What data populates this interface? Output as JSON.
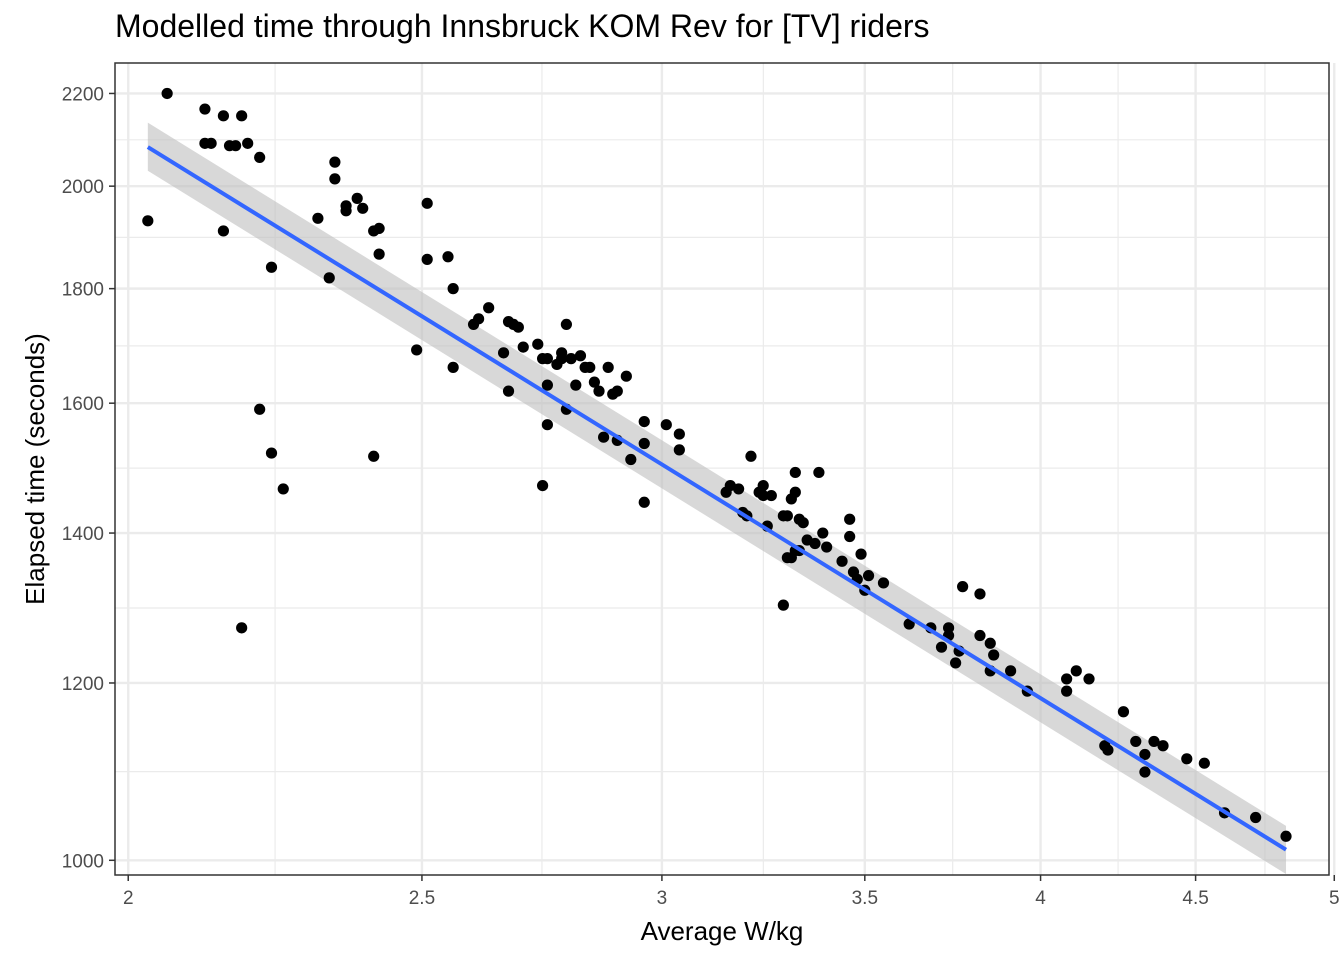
{
  "chart_data": {
    "type": "scatter",
    "title": "Modelled time through Innsbruck KOM Rev for [TV] riders",
    "xlabel": "Average W/kg",
    "ylabel": "Elapsed time (seconds)",
    "x_scale": "log",
    "y_scale": "log",
    "xlim": [
      1.98,
      4.98
    ],
    "ylim": [
      985,
      2270
    ],
    "x_ticks": [
      2,
      2.5,
      3,
      3.5,
      4,
      4.5,
      5
    ],
    "x_tick_labels": [
      "2",
      "2.5",
      "3",
      "3.5",
      "4",
      "4.5",
      "5"
    ],
    "y_ticks": [
      1000,
      1200,
      1400,
      1600,
      1800,
      2000,
      2200
    ],
    "y_tick_labels": [
      "1000",
      "1200",
      "1400",
      "1600",
      "1800",
      "2000",
      "2200"
    ],
    "grid": true,
    "colors": {
      "points": "#000000",
      "fit_line": "#3366ff",
      "confidence_band": "#bebebe",
      "grid": "#ebebeb",
      "panel_border": "#333333"
    },
    "fit_line": {
      "x": [
        2.03,
        4.82
      ],
      "y": [
        2082,
        1011
      ]
    },
    "confidence_band": {
      "x": [
        2.03,
        4.82
      ],
      "upper": [
        2135,
        1036
      ],
      "lower": [
        2032,
        986
      ]
    },
    "points": [
      [
        2.03,
        1930
      ],
      [
        2.06,
        2200
      ],
      [
        2.12,
        2165
      ],
      [
        2.12,
        2090
      ],
      [
        2.13,
        2090
      ],
      [
        2.15,
        2150
      ],
      [
        2.16,
        2085
      ],
      [
        2.17,
        2085
      ],
      [
        2.18,
        2150
      ],
      [
        2.19,
        2090
      ],
      [
        2.21,
        2060
      ],
      [
        2.15,
        1910
      ],
      [
        2.23,
        1840
      ],
      [
        2.21,
        1590
      ],
      [
        2.23,
        1520
      ],
      [
        2.25,
        1465
      ],
      [
        2.18,
        1270
      ],
      [
        2.31,
        1935
      ],
      [
        2.33,
        1820
      ],
      [
        2.34,
        2050
      ],
      [
        2.34,
        2015
      ],
      [
        2.36,
        1960
      ],
      [
        2.36,
        1950
      ],
      [
        2.38,
        1975
      ],
      [
        2.39,
        1955
      ],
      [
        2.41,
        1910
      ],
      [
        2.42,
        1915
      ],
      [
        2.42,
        1865
      ],
      [
        2.41,
        1515
      ],
      [
        2.49,
        1690
      ],
      [
        2.51,
        1965
      ],
      [
        2.51,
        1855
      ],
      [
        2.55,
        1860
      ],
      [
        2.56,
        1800
      ],
      [
        2.56,
        1660
      ],
      [
        2.6,
        1735
      ],
      [
        2.61,
        1745
      ],
      [
        2.63,
        1765
      ],
      [
        2.66,
        1685
      ],
      [
        2.67,
        1620
      ],
      [
        2.67,
        1740
      ],
      [
        2.68,
        1735
      ],
      [
        2.69,
        1730
      ],
      [
        2.7,
        1695
      ],
      [
        2.73,
        1700
      ],
      [
        2.74,
        1675
      ],
      [
        2.75,
        1675
      ],
      [
        2.75,
        1630
      ],
      [
        2.75,
        1565
      ],
      [
        2.74,
        1470
      ],
      [
        2.77,
        1665
      ],
      [
        2.78,
        1675
      ],
      [
        2.78,
        1685
      ],
      [
        2.79,
        1735
      ],
      [
        2.79,
        1590
      ],
      [
        2.8,
        1675
      ],
      [
        2.81,
        1630
      ],
      [
        2.82,
        1680
      ],
      [
        2.83,
        1660
      ],
      [
        2.84,
        1660
      ],
      [
        2.85,
        1635
      ],
      [
        2.86,
        1620
      ],
      [
        2.87,
        1545
      ],
      [
        2.88,
        1660
      ],
      [
        2.89,
        1615
      ],
      [
        2.9,
        1620
      ],
      [
        2.9,
        1540
      ],
      [
        2.92,
        1645
      ],
      [
        2.93,
        1510
      ],
      [
        2.96,
        1570
      ],
      [
        2.96,
        1535
      ],
      [
        2.96,
        1445
      ],
      [
        3.01,
        1565
      ],
      [
        3.04,
        1550
      ],
      [
        3.04,
        1525
      ],
      [
        3.15,
        1460
      ],
      [
        3.16,
        1470
      ],
      [
        3.18,
        1465
      ],
      [
        3.19,
        1430
      ],
      [
        3.2,
        1425
      ],
      [
        3.21,
        1515
      ],
      [
        3.23,
        1460
      ],
      [
        3.24,
        1470
      ],
      [
        3.24,
        1455
      ],
      [
        3.25,
        1410
      ],
      [
        3.26,
        1455
      ],
      [
        3.29,
        1425
      ],
      [
        3.29,
        1300
      ],
      [
        3.3,
        1425
      ],
      [
        3.3,
        1365
      ],
      [
        3.31,
        1450
      ],
      [
        3.31,
        1365
      ],
      [
        3.32,
        1490
      ],
      [
        3.32,
        1460
      ],
      [
        3.32,
        1375
      ],
      [
        3.33,
        1420
      ],
      [
        3.33,
        1375
      ],
      [
        3.34,
        1415
      ],
      [
        3.35,
        1390
      ],
      [
        3.37,
        1385
      ],
      [
        3.38,
        1490
      ],
      [
        3.39,
        1400
      ],
      [
        3.4,
        1380
      ],
      [
        3.44,
        1360
      ],
      [
        3.46,
        1420
      ],
      [
        3.46,
        1395
      ],
      [
        3.47,
        1345
      ],
      [
        3.48,
        1335
      ],
      [
        3.49,
        1370
      ],
      [
        3.5,
        1320
      ],
      [
        3.51,
        1340
      ],
      [
        3.55,
        1330
      ],
      [
        3.62,
        1275
      ],
      [
        3.68,
        1270
      ],
      [
        3.71,
        1245
      ],
      [
        3.73,
        1270
      ],
      [
        3.73,
        1260
      ],
      [
        3.75,
        1225
      ],
      [
        3.76,
        1240
      ],
      [
        3.77,
        1325
      ],
      [
        3.82,
        1315
      ],
      [
        3.82,
        1260
      ],
      [
        3.85,
        1250
      ],
      [
        3.85,
        1215
      ],
      [
        3.86,
        1235
      ],
      [
        3.91,
        1215
      ],
      [
        3.96,
        1190
      ],
      [
        4.08,
        1190
      ],
      [
        4.08,
        1205
      ],
      [
        4.11,
        1215
      ],
      [
        4.15,
        1205
      ],
      [
        4.2,
        1125
      ],
      [
        4.21,
        1120
      ],
      [
        4.26,
        1165
      ],
      [
        4.3,
        1130
      ],
      [
        4.33,
        1115
      ],
      [
        4.33,
        1095
      ],
      [
        4.36,
        1130
      ],
      [
        4.39,
        1125
      ],
      [
        4.47,
        1110
      ],
      [
        4.53,
        1105
      ],
      [
        4.6,
        1050
      ],
      [
        4.71,
        1045
      ],
      [
        4.82,
        1025
      ]
    ]
  }
}
